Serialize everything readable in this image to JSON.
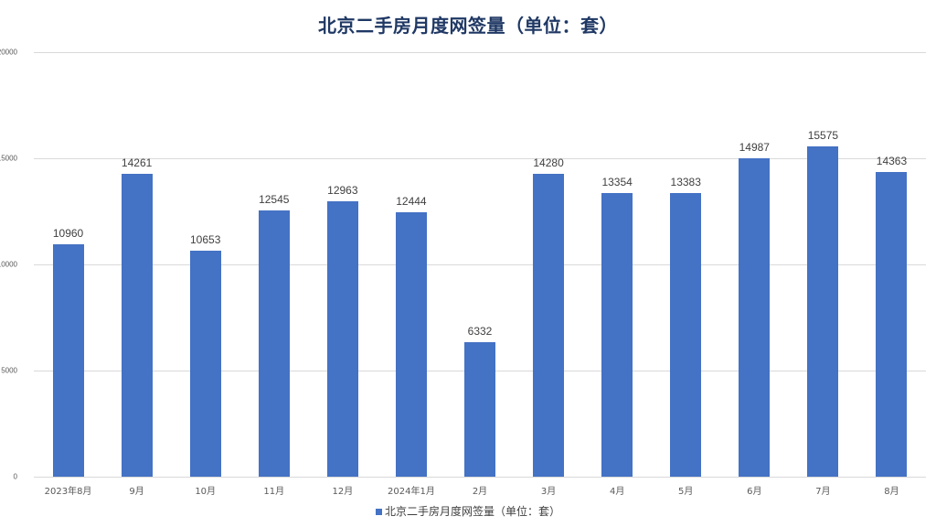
{
  "chart_data": {
    "type": "bar",
    "title": "北京二手房月度网签量（单位：套）",
    "xlabel": "",
    "ylabel": "",
    "categories": [
      "2023年8月",
      "9月",
      "10月",
      "11月",
      "12月",
      "2024年1月",
      "2月",
      "3月",
      "4月",
      "5月",
      "6月",
      "7月",
      "8月"
    ],
    "series": [
      {
        "name": "北京二手房月度网签量（单位：套）",
        "values": [
          10960,
          14261,
          10653,
          12545,
          12963,
          12444,
          6332,
          14280,
          13354,
          13383,
          14987,
          15575,
          14363
        ],
        "color": "#4472c4"
      }
    ],
    "ylim": [
      0,
      20000
    ],
    "yticks": [
      0,
      5000,
      10000,
      15000,
      20000
    ],
    "grid": true,
    "legend_position": "bottom",
    "data_labels": true
  },
  "colors": {
    "bar": "#4472c4",
    "title": "#1f3864",
    "grid": "#d9d9d9"
  }
}
